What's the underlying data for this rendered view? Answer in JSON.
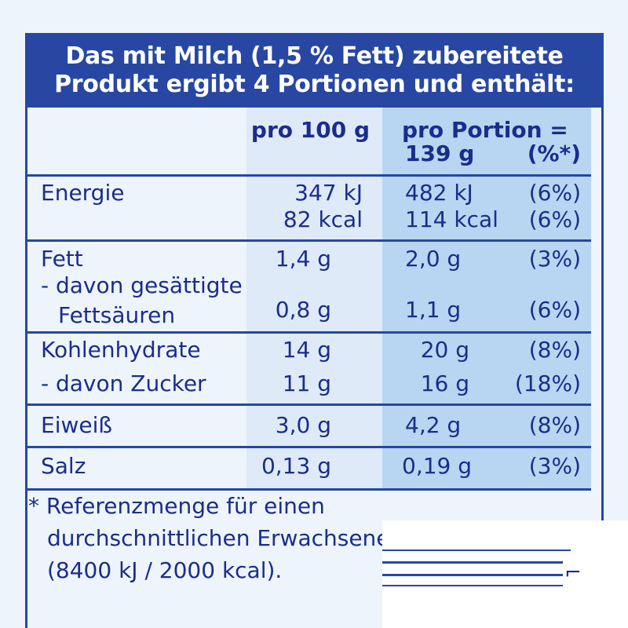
{
  "header": {
    "line1": "Das mit Milch (1,5 % Fett) zubereitete",
    "line2": "Produkt ergibt 4 Portionen und enthält:"
  },
  "columns": {
    "per100": "pro 100 g",
    "perPortion1": "pro Portion =",
    "perPortion2": "139 g",
    "percent": "(%*)"
  },
  "rows": {
    "energie": {
      "label": "Energie",
      "v100_kj": "347 kJ",
      "v100_kcal": "82 kcal",
      "por_kj": "482 kJ",
      "por_kcal": "114 kcal",
      "pct_kj": "(6%)",
      "pct_kcal": "(6%)"
    },
    "fett": {
      "label": "Fett",
      "v100": "1,4 g",
      "por": "2,0 g",
      "pct": "(3%)"
    },
    "gesaettigt": {
      "label1": "- davon gesättigte",
      "label2": "Fettsäuren",
      "v100": "0,8 g",
      "por": "1,1 g",
      "pct": "(6%)"
    },
    "kh": {
      "label": "Kohlenhydrate",
      "v100": "14 g",
      "por": "20 g",
      "pct": "(8%)"
    },
    "zucker": {
      "label": "- davon Zucker",
      "v100": "11 g",
      "por": "16 g",
      "pct": "(18%)"
    },
    "eiweiss": {
      "label": "Eiweiß",
      "v100": "3,0 g",
      "por": "4,2 g",
      "pct": "(8%)"
    },
    "salz": {
      "label": "Salz",
      "v100": "0,13 g",
      "por": "0,19 g",
      "pct": "(3%)"
    }
  },
  "footnote": {
    "line1": "* Referenzmenge für einen",
    "line2": "durchschnittlichen Erwachsenen",
    "line3": "(8400 kJ / 2000 kcal)."
  },
  "colors": {
    "brand_blue": "#2747a3",
    "text_blue": "#1a2d8c",
    "col100_bg": "#dfeaf8",
    "portion_bg": "#b8d6f1"
  }
}
